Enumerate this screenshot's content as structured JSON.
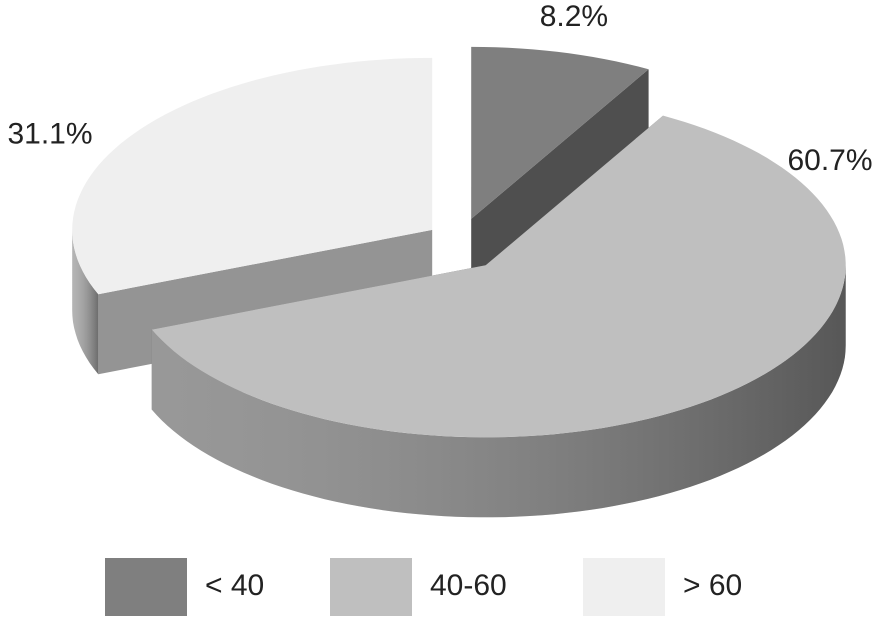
{
  "chart_data": {
    "type": "pie3d",
    "categories": [
      "< 40",
      "40-60",
      "> 60"
    ],
    "values": [
      8.2,
      60.7,
      31.1
    ],
    "value_labels": [
      "8.2%",
      "60.7%",
      "31.1%"
    ],
    "colors": [
      "#7f7f7f",
      "#bfbfbf",
      "#efefef"
    ],
    "legend": "bottom"
  }
}
